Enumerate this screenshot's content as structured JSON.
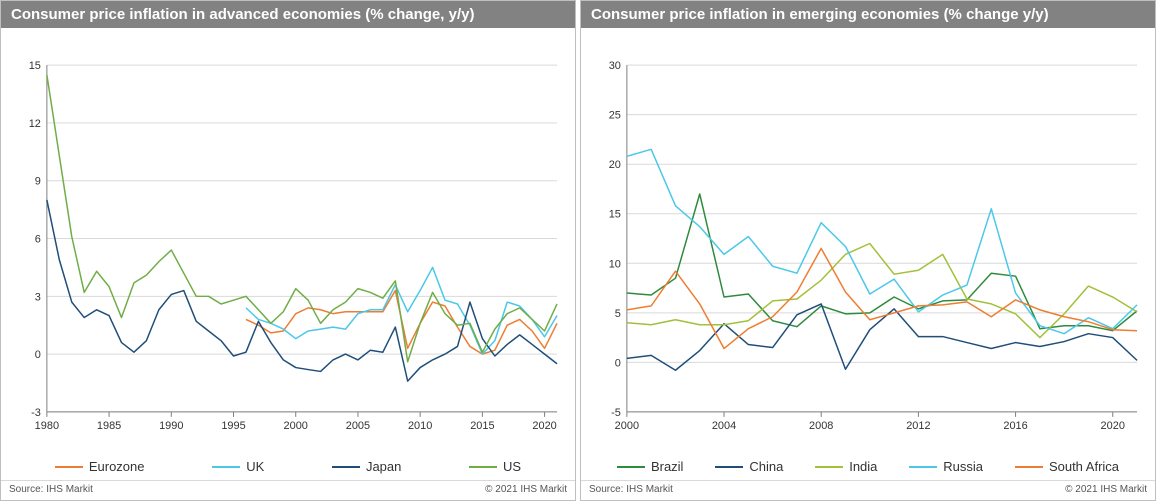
{
  "panels": [
    {
      "title": "Consumer price inflation in advanced economies (% change, y/y)",
      "source": "Source: IHS Markit",
      "copyright": "© 2021 IHS Markit",
      "chart": {
        "type": "line",
        "background_color": "#ffffff",
        "grid_color": "#d9d9d9",
        "axis_color": "#7f7f7f",
        "tick_font_size": 11,
        "x": {
          "min": 1980,
          "max": 2021,
          "ticks": [
            1980,
            1985,
            1990,
            1995,
            2000,
            2005,
            2010,
            2015,
            2020
          ]
        },
        "y": {
          "min": -3,
          "max": 15,
          "ticks": [
            -3,
            0,
            3,
            6,
            9,
            12,
            15
          ]
        },
        "series": [
          {
            "name": "Eurozone",
            "color": "#ed7d31",
            "width": 1.5,
            "x": [
              1996,
              1997,
              1998,
              1999,
              2000,
              2001,
              2002,
              2003,
              2004,
              2005,
              2006,
              2007,
              2008,
              2009,
              2010,
              2011,
              2012,
              2013,
              2014,
              2015,
              2016,
              2017,
              2018,
              2019,
              2020,
              2021
            ],
            "y": [
              1.8,
              1.5,
              1.1,
              1.2,
              2.1,
              2.4,
              2.3,
              2.1,
              2.2,
              2.2,
              2.2,
              2.2,
              3.3,
              0.3,
              1.6,
              2.7,
              2.5,
              1.4,
              0.4,
              0.0,
              0.2,
              1.5,
              1.8,
              1.2,
              0.3,
              1.6
            ]
          },
          {
            "name": "UK",
            "color": "#4bc8e8",
            "width": 1.5,
            "x": [
              1996,
              1997,
              1998,
              1999,
              2000,
              2001,
              2002,
              2003,
              2004,
              2005,
              2006,
              2007,
              2008,
              2009,
              2010,
              2011,
              2012,
              2013,
              2014,
              2015,
              2016,
              2017,
              2018,
              2019,
              2020,
              2021
            ],
            "y": [
              2.4,
              1.8,
              1.6,
              1.3,
              0.8,
              1.2,
              1.3,
              1.4,
              1.3,
              2.1,
              2.3,
              2.3,
              3.6,
              2.2,
              3.3,
              4.5,
              2.8,
              2.6,
              1.5,
              0.0,
              0.7,
              2.7,
              2.5,
              1.8,
              0.9,
              2.0
            ]
          },
          {
            "name": "Japan",
            "color": "#1f4e79",
            "width": 1.5,
            "x": [
              1980,
              1981,
              1982,
              1983,
              1984,
              1985,
              1986,
              1987,
              1988,
              1989,
              1990,
              1991,
              1992,
              1993,
              1994,
              1995,
              1996,
              1997,
              1998,
              1999,
              2000,
              2001,
              2002,
              2003,
              2004,
              2005,
              2006,
              2007,
              2008,
              2009,
              2010,
              2011,
              2012,
              2013,
              2014,
              2015,
              2016,
              2017,
              2018,
              2019,
              2020,
              2021
            ],
            "y": [
              8.0,
              4.9,
              2.7,
              1.9,
              2.3,
              2.0,
              0.6,
              0.1,
              0.7,
              2.3,
              3.1,
              3.3,
              1.7,
              1.2,
              0.7,
              -0.1,
              0.1,
              1.7,
              0.6,
              -0.3,
              -0.7,
              -0.8,
              -0.9,
              -0.3,
              0.0,
              -0.3,
              0.2,
              0.1,
              1.4,
              -1.4,
              -0.7,
              -0.3,
              0.0,
              0.4,
              2.7,
              0.8,
              -0.1,
              0.5,
              1.0,
              0.5,
              0.0,
              -0.5
            ]
          },
          {
            "name": "US",
            "color": "#70ad47",
            "width": 1.5,
            "x": [
              1980,
              1981,
              1982,
              1983,
              1984,
              1985,
              1986,
              1987,
              1988,
              1989,
              1990,
              1991,
              1992,
              1993,
              1994,
              1995,
              1996,
              1997,
              1998,
              1999,
              2000,
              2001,
              2002,
              2003,
              2004,
              2005,
              2006,
              2007,
              2008,
              2009,
              2010,
              2011,
              2012,
              2013,
              2014,
              2015,
              2016,
              2017,
              2018,
              2019,
              2020,
              2021
            ],
            "y": [
              14.5,
              10.3,
              6.1,
              3.2,
              4.3,
              3.5,
              1.9,
              3.7,
              4.1,
              4.8,
              5.4,
              4.2,
              3.0,
              3.0,
              2.6,
              2.8,
              3.0,
              2.3,
              1.6,
              2.2,
              3.4,
              2.8,
              1.6,
              2.3,
              2.7,
              3.4,
              3.2,
              2.9,
              3.8,
              -0.4,
              1.6,
              3.2,
              2.1,
              1.5,
              1.6,
              0.1,
              1.3,
              2.1,
              2.4,
              1.8,
              1.2,
              2.6
            ]
          }
        ]
      }
    },
    {
      "title": "Consumer price inflation in emerging economies (% change y/y)",
      "source": "Source: IHS Markit",
      "copyright": "© 2021 IHS Markit",
      "chart": {
        "type": "line",
        "background_color": "#ffffff",
        "grid_color": "#d9d9d9",
        "axis_color": "#7f7f7f",
        "tick_font_size": 11,
        "x": {
          "min": 2000,
          "max": 2021,
          "ticks": [
            2000,
            2004,
            2008,
            2012,
            2016,
            2020
          ]
        },
        "y": {
          "min": -5,
          "max": 30,
          "ticks": [
            -5,
            0,
            5,
            10,
            15,
            20,
            25,
            30
          ]
        },
        "series": [
          {
            "name": "Brazil",
            "color": "#2e8b3d",
            "width": 1.5,
            "x": [
              2000,
              2001,
              2002,
              2003,
              2004,
              2005,
              2006,
              2007,
              2008,
              2009,
              2010,
              2011,
              2012,
              2013,
              2014,
              2015,
              2016,
              2017,
              2018,
              2019,
              2020,
              2021
            ],
            "y": [
              7.0,
              6.8,
              8.5,
              17.0,
              6.6,
              6.9,
              4.2,
              3.6,
              5.7,
              4.9,
              5.0,
              6.6,
              5.4,
              6.2,
              6.3,
              9.0,
              8.7,
              3.4,
              3.7,
              3.7,
              3.2,
              5.2
            ]
          },
          {
            "name": "China",
            "color": "#1f4e79",
            "width": 1.5,
            "x": [
              2000,
              2001,
              2002,
              2003,
              2004,
              2005,
              2006,
              2007,
              2008,
              2009,
              2010,
              2011,
              2012,
              2013,
              2014,
              2015,
              2016,
              2017,
              2018,
              2019,
              2020,
              2021
            ],
            "y": [
              0.4,
              0.7,
              -0.8,
              1.2,
              3.9,
              1.8,
              1.5,
              4.8,
              5.9,
              -0.7,
              3.3,
              5.4,
              2.6,
              2.6,
              2.0,
              1.4,
              2.0,
              1.6,
              2.1,
              2.9,
              2.5,
              0.2
            ]
          },
          {
            "name": "India",
            "color": "#a2c03a",
            "width": 1.5,
            "x": [
              2000,
              2001,
              2002,
              2003,
              2004,
              2005,
              2006,
              2007,
              2008,
              2009,
              2010,
              2011,
              2012,
              2013,
              2014,
              2015,
              2016,
              2017,
              2018,
              2019,
              2020,
              2021
            ],
            "y": [
              4.0,
              3.8,
              4.3,
              3.8,
              3.8,
              4.2,
              6.2,
              6.4,
              8.3,
              10.9,
              12.0,
              8.9,
              9.3,
              10.9,
              6.4,
              5.9,
              4.9,
              2.5,
              4.9,
              7.7,
              6.6,
              5.1
            ]
          },
          {
            "name": "Russia",
            "color": "#4bc8e8",
            "width": 1.5,
            "x": [
              2000,
              2001,
              2002,
              2003,
              2004,
              2005,
              2006,
              2007,
              2008,
              2009,
              2010,
              2011,
              2012,
              2013,
              2014,
              2015,
              2016,
              2017,
              2018,
              2019,
              2020,
              2021
            ],
            "y": [
              20.8,
              21.5,
              15.8,
              13.7,
              10.9,
              12.7,
              9.7,
              9.0,
              14.1,
              11.7,
              6.9,
              8.4,
              5.1,
              6.8,
              7.8,
              15.5,
              7.0,
              3.7,
              2.9,
              4.5,
              3.4,
              5.8
            ]
          },
          {
            "name": "South Africa",
            "color": "#ed7d31",
            "width": 1.5,
            "x": [
              2000,
              2001,
              2002,
              2003,
              2004,
              2005,
              2006,
              2007,
              2008,
              2009,
              2010,
              2011,
              2012,
              2013,
              2014,
              2015,
              2016,
              2017,
              2018,
              2019,
              2020,
              2021
            ],
            "y": [
              5.3,
              5.7,
              9.2,
              5.9,
              1.4,
              3.4,
              4.6,
              7.1,
              11.5,
              7.1,
              4.3,
              5.0,
              5.7,
              5.8,
              6.1,
              4.6,
              6.3,
              5.3,
              4.6,
              4.1,
              3.3,
              3.2
            ]
          }
        ]
      }
    }
  ]
}
